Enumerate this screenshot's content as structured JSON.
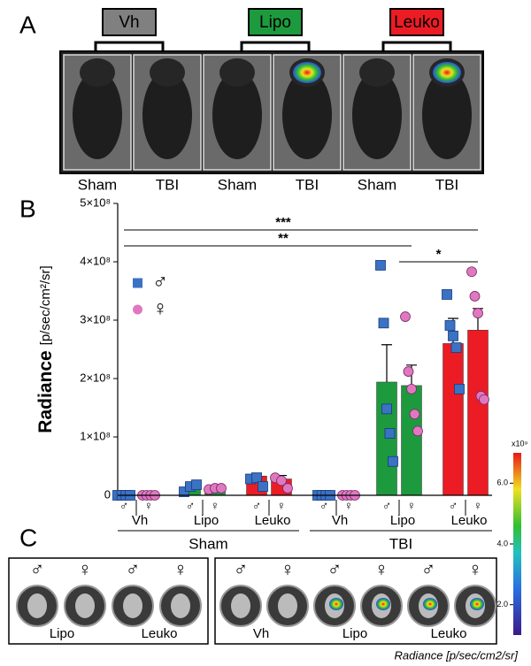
{
  "panel_a": {
    "label": "A",
    "groups": [
      {
        "name": "Vh",
        "color": "#808080"
      },
      {
        "name": "Lipo",
        "color": "#1e9a3e"
      },
      {
        "name": "Leuko",
        "color": "#ec1c24"
      }
    ],
    "image_labels": [
      "Sham",
      "TBI",
      "Sham",
      "TBI",
      "Sham",
      "TBI"
    ]
  },
  "chart_data": {
    "type": "bar",
    "label": "B",
    "y_label": "Radiance",
    "y_label_units": "[p/sec/cm²/sr]",
    "ylim": [
      0,
      500000000
    ],
    "yticks": [
      {
        "value": 0,
        "label": "0"
      },
      {
        "value": 100000000,
        "label": "1×10⁸"
      },
      {
        "value": 200000000,
        "label": "2×10⁸"
      },
      {
        "value": 300000000,
        "label": "3×10⁸"
      },
      {
        "value": 400000000,
        "label": "4×10⁸"
      },
      {
        "value": 500000000,
        "label": "5×10⁸"
      }
    ],
    "groups": [
      "Sham",
      "TBI"
    ],
    "categories": [
      "Vh",
      "Lipo",
      "Leuko",
      "Vh",
      "Lipo",
      "Leuko"
    ],
    "bar_colors": [
      "#808080",
      "#1e9a3e",
      "#ec1c24",
      "#808080",
      "#1e9a3e",
      "#ec1c24"
    ],
    "series": [
      {
        "name": "♂",
        "color": "#3a72c4",
        "marker": "square",
        "values": [
          0,
          12000000,
          33000000,
          0,
          194000000,
          260000000
        ],
        "errors": [
          0,
          4000000,
          5000000,
          0,
          64000000,
          43000000
        ],
        "points": [
          [
            0,
            0,
            0,
            0
          ],
          [
            6000000,
            15000000,
            18000000
          ],
          [
            28000000,
            30000000,
            15000000
          ],
          [
            0,
            0,
            0,
            0
          ],
          [
            394000000,
            295000000,
            148000000,
            106000000,
            58000000
          ],
          [
            344000000,
            291000000,
            273000000,
            253000000,
            182000000
          ]
        ]
      },
      {
        "name": "♀",
        "color": "#e078c0",
        "marker": "circle",
        "values": [
          0,
          11000000,
          28000000,
          0,
          188000000,
          283000000
        ],
        "errors": [
          0,
          1000000,
          6000000,
          0,
          35000000,
          37000000
        ],
        "points": [
          [
            0,
            0,
            0,
            0
          ],
          [
            10000000,
            12000000,
            12000000
          ],
          [
            30000000,
            25000000,
            12000000
          ],
          [
            0,
            0,
            0,
            0
          ],
          [
            306000000,
            212000000,
            182000000,
            139000000,
            110000000
          ],
          [
            383000000,
            341000000,
            312000000,
            170000000,
            164000000
          ]
        ]
      }
    ],
    "annotations": [
      {
        "text": "***",
        "from": 0,
        "to": 5
      },
      {
        "text": "**",
        "from": 0,
        "to": 4
      },
      {
        "text": "*",
        "from": 4,
        "to": 5
      }
    ]
  },
  "panel_c": {
    "label": "C",
    "left_sexes": [
      "♂",
      "♀",
      "♂",
      "♀"
    ],
    "left_labels": [
      "Lipo",
      "Leuko"
    ],
    "right_sexes": [
      "♂",
      "♀",
      "♂",
      "♀",
      "♂",
      "♀"
    ],
    "right_labels": [
      "Vh",
      "Lipo",
      "Leuko"
    ],
    "colorbar": {
      "multiplier": "x10⁹",
      "lim": [
        1,
        7
      ],
      "ticks": [
        {
          "value": 2,
          "label": "2.0"
        },
        {
          "value": 4,
          "label": "4.0"
        },
        {
          "value": 6,
          "label": "6.0"
        }
      ]
    },
    "colorbar_label": "Radiance [p/sec/cm2/sr]"
  }
}
